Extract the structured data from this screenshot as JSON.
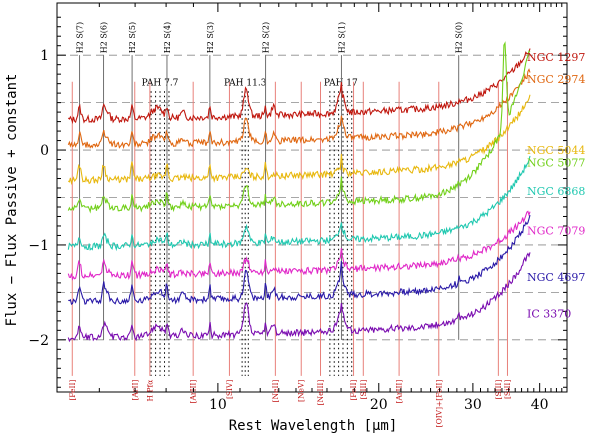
{
  "chart_data": {
    "type": "line",
    "xlabel": "Rest Wavelength [µm]",
    "ylabel": "Flux − Flux Passive + constant",
    "xscale": "log",
    "xlim": [
      5,
      45
    ],
    "ylim": [
      -2.55,
      1.55
    ],
    "x_ticks": [
      10,
      20,
      30,
      40
    ],
    "x_tick_labels": [
      "10",
      "20",
      "30",
      "40"
    ],
    "y_ticks": [
      -2,
      -1,
      0,
      1
    ],
    "y_tick_labels": [
      "−2",
      "−1",
      "0",
      "1"
    ],
    "dashed_levels": [
      1.0,
      0.5,
      0.0,
      -0.5,
      -1.0,
      -1.5,
      -2.0
    ],
    "h2_lines": [
      {
        "label": "H2 S(7)",
        "x": 5.51
      },
      {
        "label": "H2 S(6)",
        "x": 6.11
      },
      {
        "label": "H2 S(5)",
        "x": 6.91
      },
      {
        "label": "H2 S(4)",
        "x": 8.03
      },
      {
        "label": "H2 S(3)",
        "x": 9.66
      },
      {
        "label": "H2 S(2)",
        "x": 12.28
      },
      {
        "label": "H2 S(1)",
        "x": 17.03
      },
      {
        "label": "H2 S(0)",
        "x": 28.22
      }
    ],
    "pah_bands": [
      {
        "label": "PAH 7.7",
        "x0": 7.5,
        "x1": 8.1
      },
      {
        "label": "PAH 11.3",
        "x0": 11.1,
        "x1": 11.4
      },
      {
        "label": "PAH 17",
        "x0": 16.2,
        "x1": 17.8
      }
    ],
    "ion_lines": [
      {
        "label": "[FeII]",
        "x": 5.34
      },
      {
        "label": "[ArII]",
        "x": 6.99
      },
      {
        "label": "H Pfα",
        "x": 7.46
      },
      {
        "label": "[ArIII]",
        "x": 8.99
      },
      {
        "label": "[SIV]",
        "x": 10.51
      },
      {
        "label": "[NeII]",
        "x": 12.81
      },
      {
        "label": "[NeV]",
        "x": 14.32
      },
      {
        "label": "[NeIII]",
        "x": 15.56
      },
      {
        "label": "[FeII]",
        "x": 17.94
      },
      {
        "label": "[SIII]",
        "x": 18.71
      },
      {
        "label": "[ArIII]",
        "x": 21.83
      },
      {
        "label": "[OIV]+[FeII]",
        "x": 25.9
      },
      {
        "label": "[SIII]",
        "x": 33.48
      },
      {
        "label": "[SiII]",
        "x": 34.82
      }
    ],
    "series": [
      {
        "name": "NGC 1297",
        "color": "#c0180f",
        "offset": 0.32,
        "pah": 0.35,
        "h2": 0.22,
        "rise": 0.55
      },
      {
        "name": "NGC 2974",
        "color": "#e06812",
        "offset": 0.05,
        "pah": 0.3,
        "h2": 0.2,
        "rise": 0.6
      },
      {
        "name": "NGC 5044",
        "color": "#e8b80f",
        "offset": -0.32,
        "pah": 0.1,
        "h2": 0.3,
        "rise": 0.7
      },
      {
        "name": "NGC 5077",
        "color": "#72d01a",
        "offset": -0.62,
        "pah": 0.25,
        "h2": 0.22,
        "rise": 1.5
      },
      {
        "name": "NGC 6868",
        "color": "#20c8b0",
        "offset": -1.02,
        "pah": 0.22,
        "h2": 0.18,
        "rise": 0.75
      },
      {
        "name": "NGC 7079",
        "color": "#e028c8",
        "offset": -1.33,
        "pah": 0.18,
        "h2": 0.25,
        "rise": 0.5
      },
      {
        "name": "NGC 4697",
        "color": "#2a1aa8",
        "offset": -1.6,
        "pah": 0.35,
        "h2": 0.28,
        "rise": 0.7
      },
      {
        "name": "IC 3370",
        "color": "#7a0cb0",
        "offset": -1.98,
        "pah": 0.4,
        "h2": 0.2,
        "rise": 0.72
      }
    ]
  }
}
